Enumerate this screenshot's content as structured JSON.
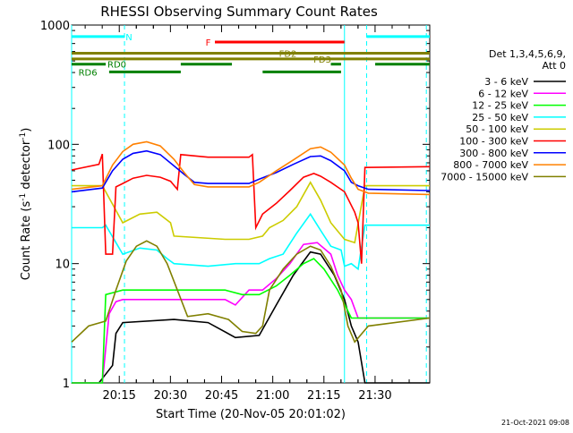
{
  "chart_data": {
    "type": "line",
    "title": "RHESSI Observing Summary Count Rates",
    "xlabel": "Start Time (20-Nov-05 20:01:02)",
    "ylabel_main": "Count Rate (s",
    "ylabel_sup1": "-1",
    "ylabel_mid": " detector",
    "ylabel_sup2": "-1",
    "ylabel_end": ")",
    "yscale": "log",
    "ylim": [
      1,
      1000
    ],
    "xlim_min": [
      0,
      105
    ],
    "x_unit": "minutes after 20:01:02",
    "x_ticks": [
      {
        "label": "20:15",
        "min": 13.97
      },
      {
        "label": "20:30",
        "min": 28.97
      },
      {
        "label": "20:45",
        "min": 43.97
      },
      {
        "label": "21:00",
        "min": 58.97
      },
      {
        "label": "21:15",
        "min": 73.97
      },
      {
        "label": "21:30",
        "min": 88.97
      }
    ],
    "y_ticks": [
      {
        "label": "1",
        "value": 1
      },
      {
        "label": "10",
        "value": 10
      },
      {
        "label": "100",
        "value": 100
      },
      {
        "label": "1000",
        "value": 1000
      }
    ],
    "legend_header": [
      "Det 1,3,4,5,6,9,",
      "Att 0"
    ],
    "legend_position": "right",
    "series": [
      {
        "name": "3 - 6 keV",
        "color": "#000000",
        "points": [
          [
            0,
            1
          ],
          [
            8,
            1
          ],
          [
            12,
            1.4
          ],
          [
            13,
            2.6
          ],
          [
            15,
            3.2
          ],
          [
            30,
            3.4
          ],
          [
            40,
            3.2
          ],
          [
            48,
            2.4
          ],
          [
            55,
            2.5
          ],
          [
            60,
            4.5
          ],
          [
            65,
            8
          ],
          [
            70,
            12.5
          ],
          [
            73,
            12
          ],
          [
            77,
            8
          ],
          [
            80,
            5
          ],
          [
            82,
            3
          ],
          [
            84,
            2.2
          ],
          [
            86,
            1
          ],
          [
            105,
            1
          ]
        ]
      },
      {
        "name": "6 - 12 keV",
        "color": "#ff00ff",
        "points": [
          [
            0,
            1
          ],
          [
            9,
            1
          ],
          [
            11,
            3.8
          ],
          [
            13,
            4.8
          ],
          [
            15,
            5
          ],
          [
            45,
            5
          ],
          [
            48,
            4.5
          ],
          [
            52,
            6
          ],
          [
            56,
            6
          ],
          [
            60,
            7.5
          ],
          [
            64,
            10
          ],
          [
            68,
            14.5
          ],
          [
            72,
            15
          ],
          [
            76,
            12
          ],
          [
            78,
            8
          ],
          [
            80,
            6
          ],
          [
            82,
            5
          ],
          [
            84,
            3.5
          ],
          [
            105,
            3.5
          ]
        ]
      },
      {
        "name": "12 - 25 keV",
        "color": "#00ff00",
        "points": [
          [
            0,
            1
          ],
          [
            9,
            1
          ],
          [
            10,
            5.5
          ],
          [
            15,
            6
          ],
          [
            45,
            6
          ],
          [
            50,
            5.5
          ],
          [
            55,
            5.5
          ],
          [
            60,
            6.5
          ],
          [
            64,
            8
          ],
          [
            68,
            10
          ],
          [
            71,
            11
          ],
          [
            74,
            9
          ],
          [
            78,
            6
          ],
          [
            82,
            3.5
          ],
          [
            105,
            3.5
          ]
        ]
      },
      {
        "name": "25 - 50 keV",
        "color": "#00ffff",
        "points": [
          [
            0,
            20
          ],
          [
            9,
            20
          ],
          [
            10,
            21
          ],
          [
            15,
            12
          ],
          [
            20,
            13.5
          ],
          [
            25,
            13
          ],
          [
            28,
            11
          ],
          [
            30,
            10
          ],
          [
            40,
            9.5
          ],
          [
            48,
            10
          ],
          [
            55,
            10
          ],
          [
            58,
            11
          ],
          [
            62,
            12
          ],
          [
            66,
            18
          ],
          [
            70,
            26
          ],
          [
            73,
            19
          ],
          [
            76,
            14
          ],
          [
            79,
            13
          ],
          [
            80,
            9.5
          ],
          [
            82,
            10
          ],
          [
            84,
            9
          ],
          [
            86,
            21
          ],
          [
            105,
            21
          ]
        ]
      },
      {
        "name": "50 - 100 keV",
        "color": "#cccc00",
        "points": [
          [
            0,
            45
          ],
          [
            9,
            45
          ],
          [
            10,
            40
          ],
          [
            15,
            22
          ],
          [
            20,
            26
          ],
          [
            25,
            27
          ],
          [
            29,
            22
          ],
          [
            30,
            17
          ],
          [
            45,
            16
          ],
          [
            52,
            16
          ],
          [
            56,
            17
          ],
          [
            58,
            20
          ],
          [
            62,
            23
          ],
          [
            66,
            30
          ],
          [
            70,
            48
          ],
          [
            73,
            34
          ],
          [
            76,
            22
          ],
          [
            80,
            16
          ],
          [
            83,
            15
          ],
          [
            86,
            45
          ],
          [
            105,
            45
          ]
        ]
      },
      {
        "name": "100 - 300 keV",
        "color": "#ff0000",
        "points": [
          [
            0,
            61
          ],
          [
            8,
            68
          ],
          [
            9,
            83
          ],
          [
            10,
            12
          ],
          [
            12,
            12
          ],
          [
            13,
            44
          ],
          [
            15,
            47
          ],
          [
            18,
            52
          ],
          [
            22,
            55
          ],
          [
            26,
            53
          ],
          [
            29,
            49
          ],
          [
            31,
            42
          ],
          [
            32,
            82
          ],
          [
            40,
            78
          ],
          [
            52,
            78
          ],
          [
            53,
            82
          ],
          [
            54,
            20
          ],
          [
            56,
            26
          ],
          [
            60,
            32
          ],
          [
            64,
            41
          ],
          [
            68,
            53
          ],
          [
            71,
            57
          ],
          [
            73,
            54
          ],
          [
            76,
            48
          ],
          [
            80,
            40
          ],
          [
            83,
            27
          ],
          [
            84,
            22
          ],
          [
            85,
            10
          ],
          [
            86,
            64
          ],
          [
            105,
            65
          ]
        ]
      },
      {
        "name": "300 - 800 keV",
        "color": "#0000ff",
        "points": [
          [
            0,
            40
          ],
          [
            9,
            43
          ],
          [
            12,
            60
          ],
          [
            15,
            75
          ],
          [
            18,
            84
          ],
          [
            22,
            88
          ],
          [
            26,
            82
          ],
          [
            30,
            66
          ],
          [
            33,
            56
          ],
          [
            36,
            48
          ],
          [
            40,
            47
          ],
          [
            52,
            47
          ],
          [
            55,
            51
          ],
          [
            60,
            58
          ],
          [
            65,
            68
          ],
          [
            70,
            79
          ],
          [
            73,
            80
          ],
          [
            76,
            73
          ],
          [
            80,
            60
          ],
          [
            82,
            48
          ],
          [
            84,
            45
          ],
          [
            87,
            42
          ],
          [
            105,
            41
          ]
        ]
      },
      {
        "name": "800 - 7000 keV",
        "color": "#ff8000",
        "points": [
          [
            0,
            42
          ],
          [
            9,
            45
          ],
          [
            12,
            67
          ],
          [
            15,
            87
          ],
          [
            18,
            100
          ],
          [
            22,
            105
          ],
          [
            26,
            97
          ],
          [
            30,
            75
          ],
          [
            33,
            58
          ],
          [
            36,
            46
          ],
          [
            40,
            44
          ],
          [
            52,
            44
          ],
          [
            55,
            48
          ],
          [
            60,
            60
          ],
          [
            65,
            74
          ],
          [
            70,
            92
          ],
          [
            73,
            95
          ],
          [
            76,
            86
          ],
          [
            80,
            67
          ],
          [
            82,
            52
          ],
          [
            84,
            42
          ],
          [
            87,
            39
          ],
          [
            105,
            38
          ]
        ]
      },
      {
        "name": "7000 - 15000 keV",
        "color": "#808000",
        "points": [
          [
            0,
            2.2
          ],
          [
            5,
            3
          ],
          [
            10,
            3.3
          ],
          [
            13,
            6
          ],
          [
            16,
            10.5
          ],
          [
            19,
            14
          ],
          [
            22,
            15.5
          ],
          [
            25,
            14
          ],
          [
            28,
            10
          ],
          [
            31,
            6
          ],
          [
            34,
            3.6
          ],
          [
            40,
            3.8
          ],
          [
            46,
            3.4
          ],
          [
            50,
            2.7
          ],
          [
            54,
            2.6
          ],
          [
            56,
            3
          ],
          [
            58,
            6
          ],
          [
            62,
            9
          ],
          [
            66,
            12
          ],
          [
            70,
            14
          ],
          [
            73,
            13
          ],
          [
            76,
            9.5
          ],
          [
            79,
            6
          ],
          [
            81,
            3
          ],
          [
            83,
            2.2
          ],
          [
            87,
            3
          ],
          [
            105,
            3.5
          ]
        ]
      }
    ],
    "flags": [
      {
        "label": "N",
        "color": "#00ffff",
        "min_start": 0,
        "min_end": 15.5,
        "value": 800,
        "label_min": 15.8,
        "label_anchor": "start"
      },
      {
        "label": "",
        "color": "#00ffff",
        "min_start": 86.5,
        "min_end": 105,
        "value": 800
      },
      {
        "label": "F",
        "color": "#ff0000",
        "min_start": 42,
        "min_end": 80,
        "value": 720,
        "label_min": 40.8,
        "label_anchor": "end"
      },
      {
        "label": "FD2",
        "color": "#808000",
        "min_start": 0,
        "min_end": 105,
        "value": 580,
        "label_min": 66,
        "label_anchor": "end"
      },
      {
        "label": "FD3",
        "color": "#808000",
        "min_start": 0,
        "min_end": 105,
        "value": 520,
        "label_min": 73.5,
        "label_anchor": "middle"
      },
      {
        "label": "RD0",
        "color": "#008000",
        "min_start": 0,
        "min_end": 10,
        "value": 470,
        "label_min": 10.5,
        "label_anchor": "start"
      },
      {
        "label": "",
        "color": "#008000",
        "min_start": 32,
        "min_end": 47,
        "value": 470
      },
      {
        "label": "",
        "color": "#008000",
        "min_start": 76,
        "min_end": 79,
        "value": 470
      },
      {
        "label": "",
        "color": "#008000",
        "min_start": 89,
        "min_end": 105,
        "value": 470
      },
      {
        "label": "RD6",
        "color": "#008000",
        "min_start": 11,
        "min_end": 32,
        "value": 405,
        "label_min": 2,
        "label_anchor": "start"
      },
      {
        "label": "",
        "color": "#008000",
        "min_start": 56,
        "min_end": 79,
        "value": 405
      }
    ],
    "vlines": [
      {
        "min": 0,
        "style": "solid",
        "color": "#00ffff"
      },
      {
        "min": 15.5,
        "style": "dashed",
        "color": "#00ffff"
      },
      {
        "min": 80,
        "style": "solid",
        "color": "#00ffff"
      },
      {
        "min": 86.5,
        "style": "dashed",
        "color": "#00ffff"
      },
      {
        "min": 104,
        "style": "dashed",
        "color": "#00ffff"
      }
    ]
  },
  "timestamp": "21-Oct-2021 09:08"
}
